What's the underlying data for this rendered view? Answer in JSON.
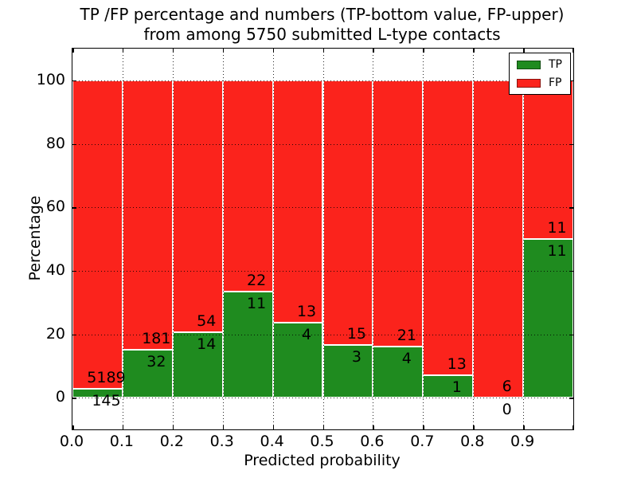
{
  "title": {
    "line1": "TP /FP percentage and numbers (TP-bottom value, FP-upper)",
    "line2": "from among 5750 submitted L-type contacts"
  },
  "chart_data": {
    "type": "bar",
    "stacked": true,
    "normalized": "each bin scaled to 100%",
    "title": "TP /FP percentage and numbers (TP-bottom value, FP-upper) from among 5750 submitted L-type contacts",
    "xlabel": "Predicted probability",
    "ylabel": "Percentage",
    "xlim": [
      0.0,
      1.0
    ],
    "ylim": [
      -10,
      110
    ],
    "bin_width": 0.1,
    "bin_starts": [
      0.0,
      0.1,
      0.2,
      0.3,
      0.4,
      0.5,
      0.6,
      0.7,
      0.8,
      0.9
    ],
    "xticks": [
      0.0,
      0.1,
      0.2,
      0.3,
      0.4,
      0.5,
      0.6,
      0.7,
      0.8,
      0.9
    ],
    "xtick_labels": [
      "0.0",
      "0.1",
      "0.2",
      "0.3",
      "0.4",
      "0.5",
      "0.6",
      "0.7",
      "0.8",
      "0.9"
    ],
    "yticks": [
      0,
      20,
      40,
      60,
      80,
      100
    ],
    "ytick_labels": [
      "0",
      "20",
      "40",
      "60",
      "80",
      "100"
    ],
    "grid": "dotted both axes, drawn above bars",
    "series": [
      {
        "name": "TP",
        "color": "#1f8b1f",
        "counts": [
          145,
          32,
          14,
          11,
          4,
          3,
          4,
          1,
          0,
          11
        ]
      },
      {
        "name": "FP",
        "color": "#fb231c",
        "counts": [
          5189,
          181,
          54,
          22,
          13,
          15,
          21,
          13,
          6,
          11
        ]
      }
    ],
    "tp_percent_of_bin": [
      2.7,
      15.0,
      20.6,
      33.3,
      23.5,
      16.7,
      16.0,
      7.1,
      0.0,
      50.0
    ],
    "bar_edge_color": "#ffffff",
    "legend": {
      "position": "upper right",
      "entries": [
        {
          "label": "TP",
          "color": "#1f8b1f"
        },
        {
          "label": "FP",
          "color": "#fb231c"
        }
      ]
    }
  }
}
